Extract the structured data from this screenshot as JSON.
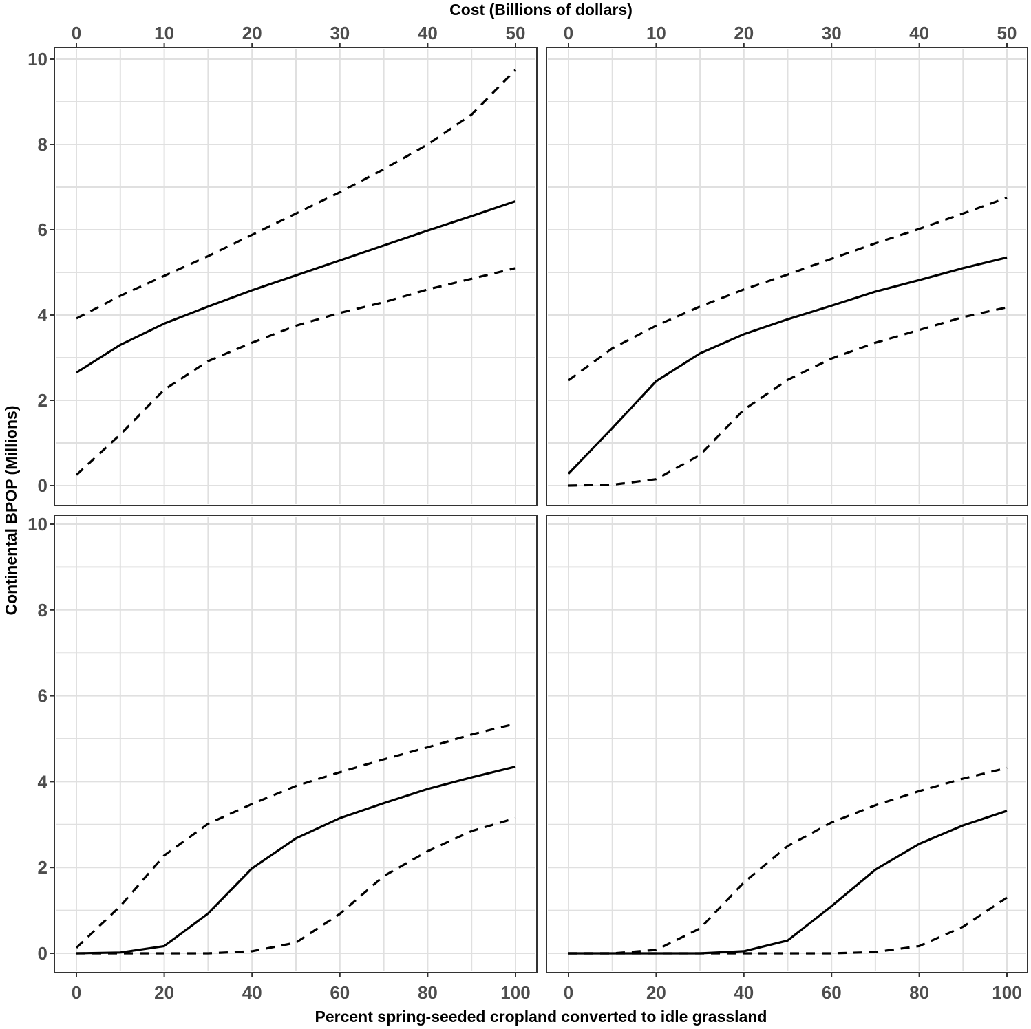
{
  "chart_data": {
    "type": "line",
    "layout": "2x2 facet grid, shared axes",
    "top_axis_title": "Cost (Billions of dollars)",
    "xlabel": "Percent spring-seeded cropland converted to idle grassland",
    "ylabel": "Continental BPOP (Millions)",
    "x": [
      0,
      10,
      20,
      30,
      40,
      50,
      60,
      70,
      80,
      90,
      100
    ],
    "xlim": [
      -5,
      105
    ],
    "ylim": [
      -0.5,
      10.3
    ],
    "x_ticks": [
      0,
      20,
      40,
      60,
      80,
      100
    ],
    "x_ticks_top": [
      0,
      10,
      20,
      30,
      40,
      50
    ],
    "y_ticks": [
      0,
      2,
      4,
      6,
      8,
      10
    ],
    "grid": true,
    "legend": "none",
    "line_styles": {
      "mean": "solid",
      "upper": "dashed",
      "lower": "dashed"
    },
    "panels": [
      {
        "position": "top-left",
        "series": [
          {
            "name": "mean",
            "values": [
              2.65,
              3.3,
              3.8,
              4.2,
              4.58,
              4.93,
              5.28,
              5.63,
              5.98,
              6.32,
              6.67
            ]
          },
          {
            "name": "upper",
            "values": [
              3.92,
              4.45,
              4.92,
              5.38,
              5.88,
              6.38,
              6.88,
              7.42,
              8.0,
              8.7,
              9.75
            ]
          },
          {
            "name": "lower",
            "values": [
              0.25,
              1.2,
              2.25,
              2.92,
              3.35,
              3.75,
              4.05,
              4.3,
              4.6,
              4.85,
              5.1
            ]
          }
        ]
      },
      {
        "position": "top-right",
        "series": [
          {
            "name": "mean",
            "values": [
              0.28,
              1.35,
              2.45,
              3.1,
              3.55,
              3.9,
              4.22,
              4.55,
              4.82,
              5.1,
              5.35
            ]
          },
          {
            "name": "upper",
            "values": [
              2.47,
              3.22,
              3.75,
              4.2,
              4.6,
              4.95,
              5.32,
              5.68,
              6.02,
              6.38,
              6.75
            ]
          },
          {
            "name": "lower",
            "values": [
              0.0,
              0.02,
              0.15,
              0.72,
              1.78,
              2.48,
              2.98,
              3.35,
              3.65,
              3.95,
              4.18
            ]
          }
        ]
      },
      {
        "position": "bottom-left",
        "series": [
          {
            "name": "mean",
            "values": [
              0.0,
              0.02,
              0.17,
              0.93,
              1.98,
              2.68,
              3.15,
              3.5,
              3.83,
              4.1,
              4.35
            ]
          },
          {
            "name": "upper",
            "values": [
              0.13,
              1.1,
              2.28,
              3.02,
              3.48,
              3.9,
              4.22,
              4.52,
              4.8,
              5.1,
              5.35
            ]
          },
          {
            "name": "lower",
            "values": [
              0.0,
              0.0,
              0.0,
              0.0,
              0.05,
              0.25,
              0.92,
              1.8,
              2.38,
              2.85,
              3.15
            ]
          }
        ]
      },
      {
        "position": "bottom-right",
        "series": [
          {
            "name": "mean",
            "values": [
              0.0,
              0.0,
              0.0,
              0.0,
              0.05,
              0.3,
              1.1,
              1.95,
              2.55,
              2.98,
              3.32
            ]
          },
          {
            "name": "upper",
            "values": [
              0.0,
              0.0,
              0.08,
              0.58,
              1.65,
              2.5,
              3.05,
              3.45,
              3.78,
              4.07,
              4.32
            ]
          },
          {
            "name": "lower",
            "values": [
              0.0,
              0.0,
              0.0,
              0.0,
              0.0,
              0.0,
              0.0,
              0.03,
              0.17,
              0.62,
              1.3
            ]
          }
        ]
      }
    ]
  },
  "colors": {
    "line": "#000000",
    "grid": "#e0e0e0",
    "panel_border": "#333333",
    "tick_label": "#4d4d4d",
    "background": "#ffffff"
  }
}
